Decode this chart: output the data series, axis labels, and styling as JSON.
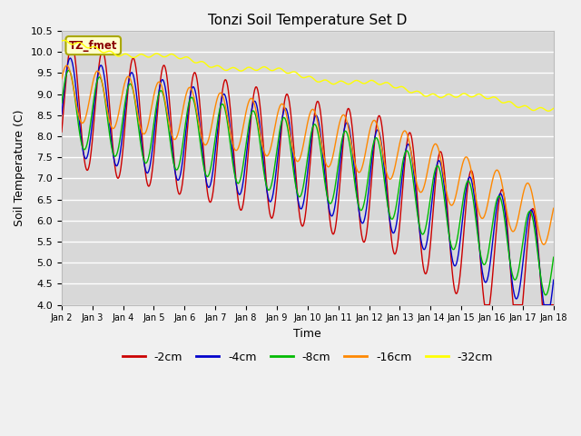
{
  "title": "Tonzi Soil Temperature Set D",
  "xlabel": "Time",
  "ylabel": "Soil Temperature (C)",
  "ylim": [
    4.0,
    10.5
  ],
  "colors": {
    "-2cm": "#cc0000",
    "-4cm": "#0000cc",
    "-8cm": "#00bb00",
    "-16cm": "#ff8800",
    "-32cm": "#ffff00"
  },
  "legend_label": "TZ_fmet",
  "plot_bg": "#d8d8d8",
  "fig_bg": "#f0f0f0",
  "grid_color": "#ffffff",
  "n_days": 16,
  "points_per_day": 96
}
